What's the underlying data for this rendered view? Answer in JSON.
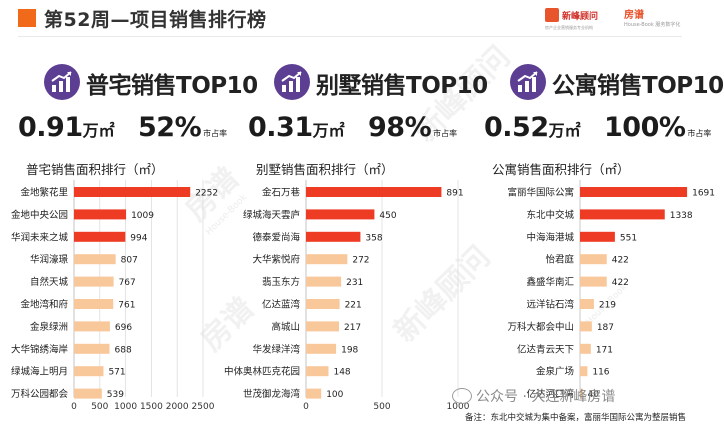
{
  "header": {
    "title": "第52周—项目销售排行榜",
    "logo_a": {
      "name": "新峰顾问",
      "tagline": "房产企业营销服务专业机构"
    },
    "logo_b": {
      "name": "房谱",
      "tagline": "House-Book 服务数字化"
    }
  },
  "sections": [
    {
      "title": "普宅销售TOP10",
      "area_value": "0.91",
      "area_unit": "万㎡",
      "share_value": "52%",
      "share_label": "市占率",
      "chart_title": "普宅销售面积排行（㎡）"
    },
    {
      "title": "别墅销售TOP10",
      "area_value": "0.31",
      "area_unit": "万㎡",
      "share_value": "98%",
      "share_label": "市占率",
      "chart_title": "别墅销售面积排行（㎡）"
    },
    {
      "title": "公寓销售TOP10",
      "area_value": "0.52",
      "area_unit": "万㎡",
      "share_value": "100%",
      "share_label": "市占率",
      "chart_title": "公寓销售面积排行（㎡）"
    }
  ],
  "chart_data": [
    {
      "type": "bar",
      "orientation": "horizontal",
      "title": "普宅销售面积排行（㎡）",
      "categories": [
        "金地繁花里",
        "金地中央公园",
        "华润未来之城",
        "华润濠璟",
        "自然天城",
        "金地湾和府",
        "金泉绿洲",
        "大华锦绣海岸",
        "绿城海上明月",
        "万科公园都会"
      ],
      "values": [
        2252,
        1009,
        994,
        807,
        767,
        761,
        696,
        688,
        571,
        539
      ],
      "xlim": [
        0,
        2500
      ],
      "xticks": [
        "0",
        "500",
        "1000",
        "1500",
        "2000",
        "2500"
      ],
      "highlight_count": 3,
      "colors": {
        "highlight": "#ee3b24",
        "normal": "#f8c79a"
      }
    },
    {
      "type": "bar",
      "orientation": "horizontal",
      "title": "别墅销售面积排行（㎡）",
      "categories": [
        "金石万巷",
        "绿城海天雲庐",
        "德泰爱尚海",
        "大华紫悦府",
        "翡玉东方",
        "亿达蓝湾",
        "高城山",
        "华发绿洋湾",
        "中体奥林匹克花园",
        "世茂御龙海湾"
      ],
      "values": [
        891,
        450,
        358,
        272,
        231,
        221,
        217,
        198,
        148,
        100
      ],
      "xlim": [
        0,
        1000
      ],
      "xticks": [
        "0",
        "500",
        "1000"
      ],
      "highlight_count": 3,
      "colors": {
        "highlight": "#ee3b24",
        "normal": "#f8c79a"
      }
    },
    {
      "type": "bar",
      "orientation": "horizontal",
      "title": "公寓销售面积排行（㎡）",
      "categories": [
        "富丽华国际公寓",
        "东北中交城",
        "中海海港城",
        "怡君庭",
        "鑫盛华南汇",
        "远洋钻石湾",
        "万科大都会中山",
        "亿达青云天下",
        "金泉广场",
        "亿达河口湾"
      ],
      "values": [
        1691,
        1338,
        551,
        422,
        422,
        219,
        187,
        171,
        116,
        40
      ],
      "xlim": [
        0,
        1800
      ],
      "xticks": [],
      "highlight_count": 3,
      "colors": {
        "highlight": "#ee3b24",
        "normal": "#f8c79a"
      }
    }
  ],
  "footer": {
    "wechat": "公众号 · 大连新峰房谱",
    "note": "备注：东北中交城为集中备案，富丽华国际公寓为整层销售"
  },
  "watermarks": {
    "brand_cn": "房谱",
    "brand_cn2": "新峰顾问",
    "brand_en": "House-Book"
  },
  "colors": {
    "accent": "#f06a1a",
    "icon_bg": "#5c3f92"
  }
}
